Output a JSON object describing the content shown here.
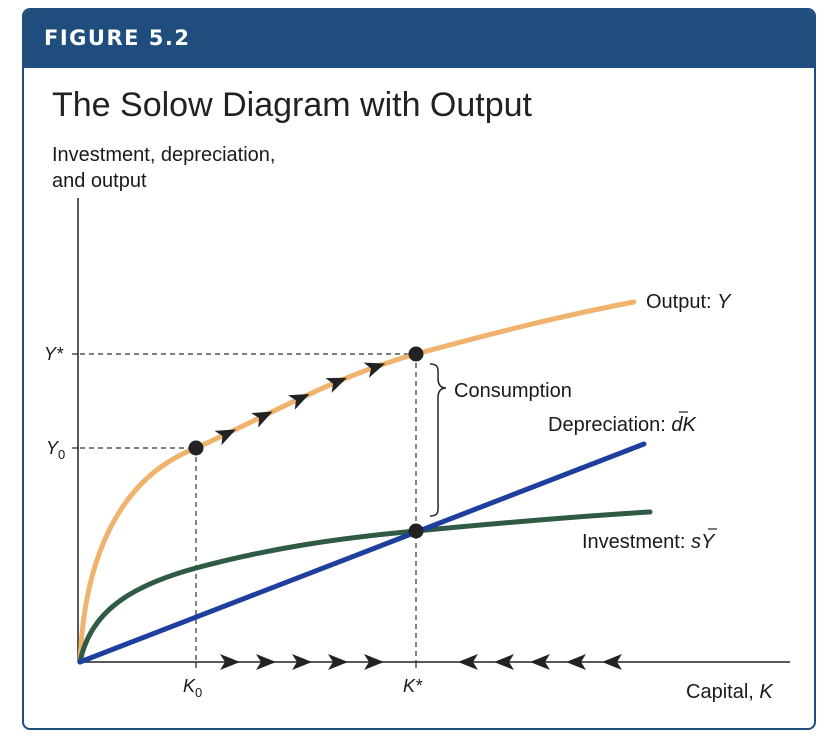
{
  "header": {
    "figure_label": "FIGURE 5.2"
  },
  "title": "The Solow Diagram with Output",
  "y_axis_label_line1": "Investment, depreciation,",
  "y_axis_label_line2": "and output",
  "x_axis_label_text": "Capital, ",
  "x_axis_label_var": "K",
  "tick_labels": {
    "y_star": "Y*",
    "y0_base": "Y",
    "y0_sub": "0",
    "k0_base": "K",
    "k0_sub": "0",
    "k_star": "K*"
  },
  "curve_labels": {
    "output_text": "Output: ",
    "output_var": "Y",
    "depreciation_text": "Depreciation: ",
    "depreciation_var": "dK",
    "investment_text": "Investment: ",
    "investment_var": "sY",
    "consumption": "Consumption"
  },
  "colors": {
    "frame": "#1f4e7e",
    "output": "#efb36d",
    "depreciation": "#1e3f9e",
    "investment": "#2f5a44",
    "axis": "#222222",
    "marker": "#222222"
  },
  "chart_data": {
    "type": "line",
    "title": "The Solow Diagram with Output",
    "ylabel": "Investment, depreciation, and output",
    "xlabel": "Capital, K",
    "series": [
      {
        "name": "Output: Y",
        "shape": "concave"
      },
      {
        "name": "Depreciation: dK",
        "shape": "linear"
      },
      {
        "name": "Investment: sY",
        "shape": "concave"
      }
    ],
    "points": [
      "K0, Y0 on output curve",
      "K*, Y* on output curve",
      "steady state at K* where investment = depreciation"
    ],
    "annotations": [
      "Consumption"
    ]
  }
}
